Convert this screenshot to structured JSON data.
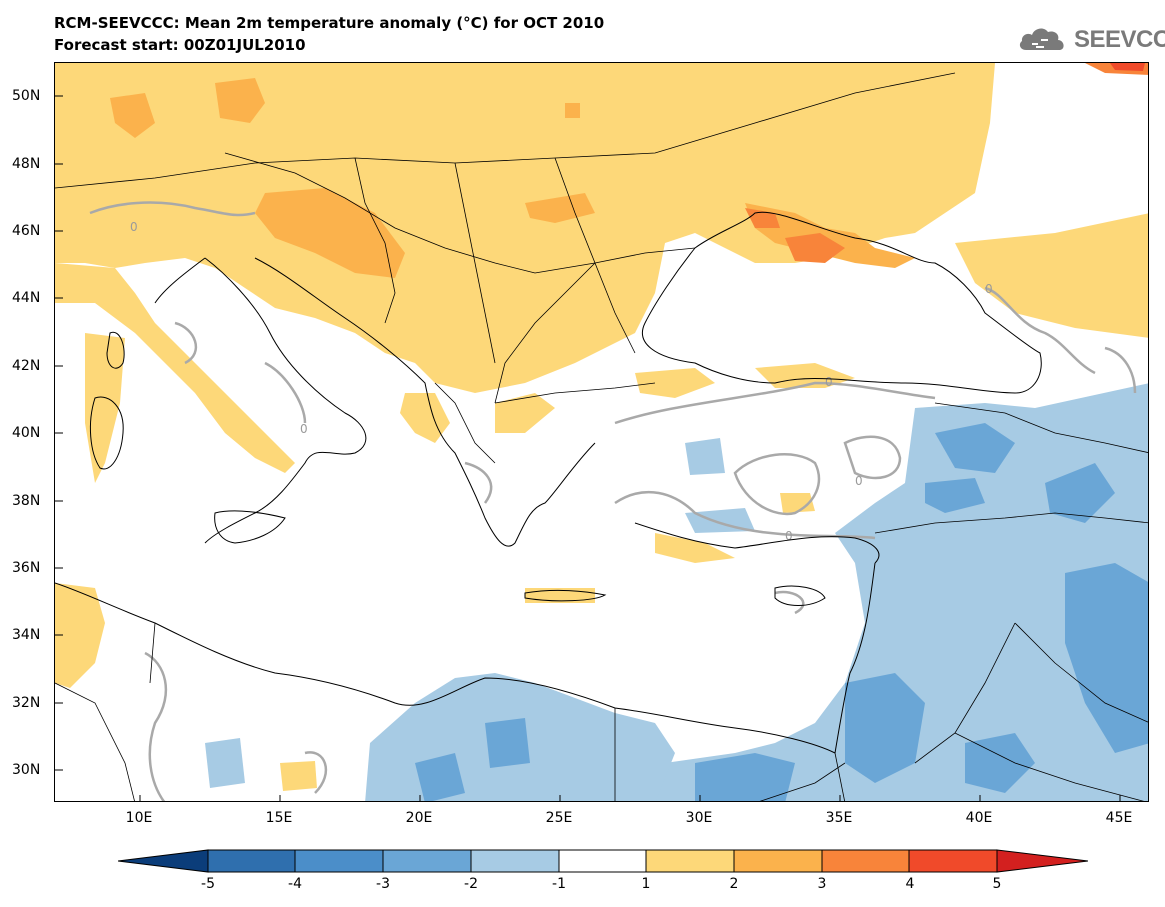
{
  "header": {
    "title": "RCM-SEEVCCC: Mean 2m temperature anomaly (°C) for OCT 2010",
    "subtitle": "Forecast start: 00Z01JUL2010",
    "logo_text": "SEEVCCC"
  },
  "map": {
    "lat_labels": [
      "50N",
      "48N",
      "46N",
      "44N",
      "42N",
      "40N",
      "38N",
      "36N",
      "34N",
      "32N",
      "30N"
    ],
    "lon_labels": [
      "10E",
      "15E",
      "20E",
      "25E",
      "30E",
      "35E",
      "40E",
      "45E"
    ],
    "contour_label": "0"
  },
  "colorbar": {
    "labels": [
      "-5",
      "-4",
      "-3",
      "-2",
      "-1",
      "1",
      "2",
      "3",
      "4",
      "5"
    ],
    "colors": [
      "#0b3d7a",
      "#2f6fae",
      "#4b8ec9",
      "#6aa6d6",
      "#a7cbe4",
      "#ffffff",
      "#fdd879",
      "#fbb24c",
      "#f8843a",
      "#f04a2a",
      "#d3201f"
    ]
  }
}
